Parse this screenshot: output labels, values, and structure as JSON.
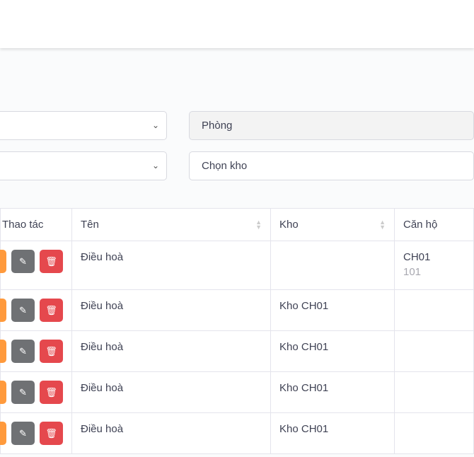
{
  "filters": {
    "room_placeholder": "Phòng",
    "warehouse_placeholder": "Chọn kho"
  },
  "table": {
    "headers": [
      "Thao tác",
      "Tên",
      "Kho",
      "Căn hộ"
    ],
    "rows": [
      {
        "name": "Điều hoà",
        "warehouse": "",
        "apartment": "CH01",
        "apartment_sub": "101"
      },
      {
        "name": "Điều hoà",
        "warehouse": "Kho CH01",
        "apartment": "",
        "apartment_sub": ""
      },
      {
        "name": "Điều hoà",
        "warehouse": "Kho CH01",
        "apartment": "",
        "apartment_sub": ""
      },
      {
        "name": "Điều hoà",
        "warehouse": "Kho CH01",
        "apartment": "",
        "apartment_sub": ""
      },
      {
        "name": "Điều hoà",
        "warehouse": "Kho CH01",
        "apartment": "",
        "apartment_sub": ""
      }
    ]
  },
  "colors": {
    "orange": "#ff9a3c",
    "gray": "#6f7174",
    "red": "#e5484d"
  }
}
